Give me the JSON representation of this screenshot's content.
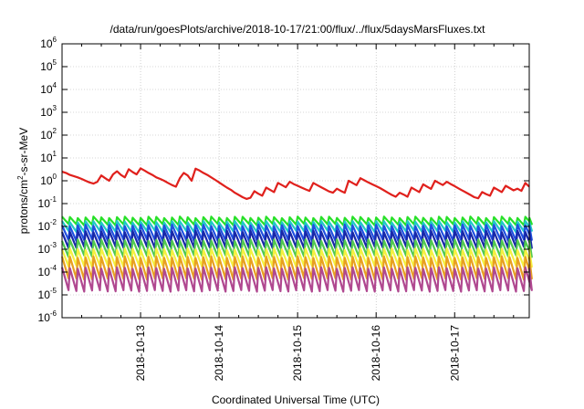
{
  "chart_data": {
    "type": "line",
    "title": "/data/run/goesPlots/archive/2018-10-17/21:00/flux/../flux/5daysMarsFluxes.txt",
    "xlabel": "Coordinated Universal Time (UTC)",
    "ylabel": {
      "prefix": "protons/cm",
      "sup": "2",
      "suffix": "-s-sr-MeV"
    },
    "x_range_days": [
      0,
      5.95
    ],
    "x_ticks": [
      {
        "label": "2018-10-13",
        "day": 1.0
      },
      {
        "label": "2018-10-14",
        "day": 2.0
      },
      {
        "label": "2018-10-15",
        "day": 3.0
      },
      {
        "label": "2018-10-16",
        "day": 4.0
      },
      {
        "label": "2018-10-17",
        "day": 5.0
      }
    ],
    "y_scale": "log",
    "y_range": [
      1e-06,
      1000000.0
    ],
    "y_ticks": [
      {
        "base": "10",
        "exp": "6",
        "value": 1000000.0
      },
      {
        "base": "10",
        "exp": "5",
        "value": 100000.0
      },
      {
        "base": "10",
        "exp": "4",
        "value": 10000.0
      },
      {
        "base": "10",
        "exp": "3",
        "value": 1000.0
      },
      {
        "base": "10",
        "exp": "2",
        "value": 100.0
      },
      {
        "base": "10",
        "exp": "1",
        "value": 10.0
      },
      {
        "base": "10",
        "exp": "0",
        "value": 1.0
      },
      {
        "base": "10",
        "exp": "-1",
        "value": 0.1
      },
      {
        "base": "10",
        "exp": "-2",
        "value": 0.01
      },
      {
        "base": "10",
        "exp": "-3",
        "value": 0.001
      },
      {
        "base": "10",
        "exp": "-4",
        "value": 0.0001
      },
      {
        "base": "10",
        "exp": "-5",
        "value": 1e-05
      },
      {
        "base": "10",
        "exp": "-6",
        "value": 1e-06
      }
    ],
    "grid": true,
    "series": [
      {
        "color": "#e0201c",
        "style": "sawtooth",
        "x": [
          0,
          0.05,
          0.1,
          0.15,
          0.2,
          0.25,
          0.3,
          0.35,
          0.4,
          0.45,
          0.5,
          0.55,
          0.6,
          0.65,
          0.7,
          0.75,
          0.8,
          0.85,
          0.9,
          0.95,
          1.0,
          1.05,
          1.1,
          1.15,
          1.2,
          1.25,
          1.3,
          1.35,
          1.4,
          1.45,
          1.5,
          1.55,
          1.6,
          1.65,
          1.7,
          1.75,
          1.8,
          1.85,
          1.9,
          1.95,
          2.0,
          2.05,
          2.1,
          2.15,
          2.2,
          2.25,
          2.3,
          2.35,
          2.4,
          2.45,
          2.5,
          2.55,
          2.6,
          2.65,
          2.7,
          2.75,
          2.8,
          2.85,
          2.9,
          2.95,
          3.0,
          3.05,
          3.1,
          3.15,
          3.2,
          3.25,
          3.3,
          3.35,
          3.4,
          3.45,
          3.5,
          3.55,
          3.6,
          3.65,
          3.7,
          3.75,
          3.8,
          3.85,
          3.9,
          3.95,
          4.0,
          4.05,
          4.1,
          4.15,
          4.2,
          4.25,
          4.3,
          4.35,
          4.4,
          4.45,
          4.5,
          4.55,
          4.6,
          4.65,
          4.7,
          4.75,
          4.8,
          4.85,
          4.9,
          4.95,
          5.0,
          5.05,
          5.1,
          5.15,
          5.2,
          5.25,
          5.3,
          5.35,
          5.4,
          5.45,
          5.5,
          5.55,
          5.6,
          5.65,
          5.7,
          5.75,
          5.8,
          5.85,
          5.9,
          5.95
        ],
        "y": [
          2.5,
          2.2,
          1.8,
          1.6,
          1.4,
          1.2,
          1.0,
          0.85,
          0.75,
          0.9,
          1.7,
          1.3,
          1.0,
          1.9,
          2.6,
          1.8,
          1.4,
          3.2,
          2.4,
          1.9,
          3.5,
          2.8,
          2.2,
          1.8,
          1.4,
          1.2,
          1.0,
          0.8,
          0.65,
          0.55,
          1.3,
          2.2,
          1.7,
          1.0,
          3.4,
          2.8,
          2.2,
          1.8,
          1.4,
          1.1,
          0.85,
          0.65,
          0.5,
          0.4,
          0.3,
          0.24,
          0.19,
          0.16,
          0.18,
          0.35,
          0.27,
          0.22,
          0.5,
          0.4,
          0.32,
          0.8,
          0.65,
          0.52,
          0.9,
          0.72,
          0.6,
          0.5,
          0.42,
          0.36,
          0.8,
          0.64,
          0.52,
          0.42,
          0.34,
          0.3,
          0.45,
          0.36,
          0.3,
          1.0,
          0.8,
          0.64,
          1.3,
          1.05,
          0.85,
          0.7,
          0.58,
          0.48,
          0.38,
          0.3,
          0.24,
          0.2,
          0.3,
          0.25,
          0.2,
          0.5,
          0.4,
          0.32,
          0.7,
          0.55,
          0.44,
          1.0,
          0.8,
          0.65,
          0.9,
          0.72,
          0.58,
          0.46,
          0.37,
          0.3,
          0.24,
          0.19,
          0.17,
          0.32,
          0.26,
          0.22,
          0.5,
          0.4,
          0.32,
          0.6,
          0.48,
          0.38,
          0.45,
          0.36,
          0.8,
          0.55
        ]
      },
      {
        "color": "#28e028",
        "style": "sawtooth",
        "period": 0.1,
        "top": 0.025,
        "bottom": 0.012
      },
      {
        "color": "#20c8c8",
        "style": "sawtooth",
        "period": 0.1,
        "top": 0.016,
        "bottom": 0.006
      },
      {
        "color": "#2050e0",
        "style": "sawtooth",
        "period": 0.1,
        "top": 0.011,
        "bottom": 0.0025
      },
      {
        "color": "#1828a8",
        "style": "sawtooth",
        "period": 0.1,
        "top": 0.006,
        "bottom": 0.0012
      },
      {
        "color": "#50c850",
        "style": "sawtooth",
        "period": 0.1,
        "top": 0.0025,
        "bottom": 0.0005
      },
      {
        "color": "#f5f040",
        "style": "sawtooth",
        "period": 0.1,
        "top": 0.001,
        "bottom": 0.00018
      },
      {
        "color": "#e8a020",
        "style": "sawtooth",
        "period": 0.1,
        "top": 0.00045,
        "bottom": 5e-05
      },
      {
        "color": "#b04890",
        "style": "sawtooth",
        "period": 0.1,
        "top": 0.00015,
        "bottom": 1.5e-05
      }
    ]
  }
}
